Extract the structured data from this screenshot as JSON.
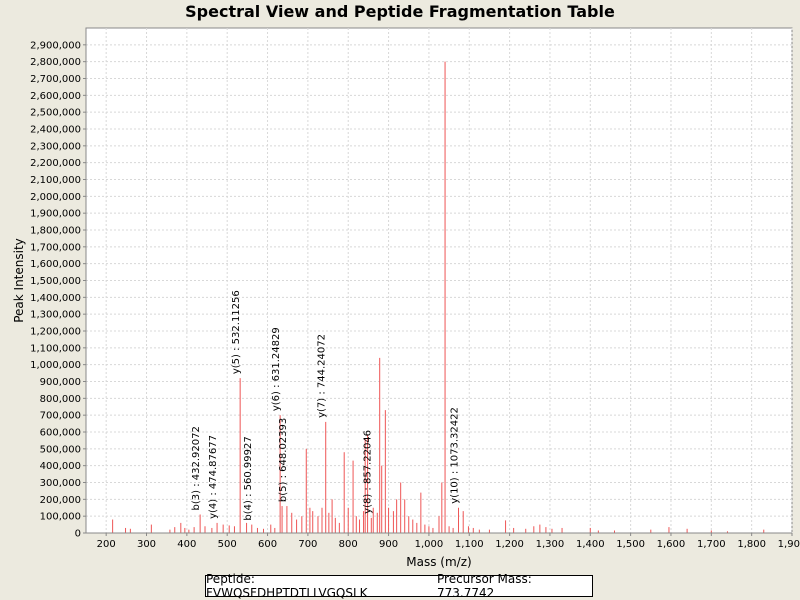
{
  "chart_data": {
    "type": "bar",
    "title": "Spectral View and Peptide Fragmentation Table",
    "xlabel": "Mass (m/z)",
    "ylabel": "Peak Intensity",
    "xlim": [
      150,
      1900
    ],
    "ylim": [
      0,
      3000000
    ],
    "x_ticks": [
      200,
      300,
      400,
      500,
      600,
      700,
      800,
      900,
      1000,
      1100,
      1200,
      1300,
      1400,
      1500,
      1600,
      1700,
      1800,
      1900
    ],
    "x_tick_labels": [
      "200",
      "300",
      "400",
      "500",
      "600",
      "700",
      "800",
      "900",
      "1,000",
      "1,100",
      "1,200",
      "1,300",
      "1,400",
      "1,500",
      "1,600",
      "1,700",
      "1,800",
      "1,900"
    ],
    "y_ticks": [
      0,
      100000,
      200000,
      300000,
      400000,
      500000,
      600000,
      700000,
      800000,
      900000,
      1000000,
      1100000,
      1200000,
      1300000,
      1400000,
      1500000,
      1600000,
      1700000,
      1800000,
      1900000,
      2000000,
      2100000,
      2200000,
      2300000,
      2400000,
      2500000,
      2600000,
      2700000,
      2800000,
      2900000
    ],
    "y_tick_labels": [
      "0",
      "100,000",
      "200,000",
      "300,000",
      "400,000",
      "500,000",
      "600,000",
      "700,000",
      "800,000",
      "900,000",
      "1,000,000",
      "1,100,000",
      "1,200,000",
      "1,300,000",
      "1,400,000",
      "1,500,000",
      "1,600,000",
      "1,700,000",
      "1,800,000",
      "1,900,000",
      "2,000,000",
      "2,100,000",
      "2,200,000",
      "2,300,000",
      "2,400,000",
      "2,500,000",
      "2,600,000",
      "2,700,000",
      "2,800,000",
      "2,900,000"
    ],
    "grid": true,
    "bar_color": "#ee5555",
    "peaks": [
      [
        216,
        80000
      ],
      [
        248,
        30000
      ],
      [
        260,
        25000
      ],
      [
        312,
        50000
      ],
      [
        358,
        20000
      ],
      [
        370,
        35000
      ],
      [
        385,
        60000
      ],
      [
        395,
        30000
      ],
      [
        405,
        20000
      ],
      [
        418,
        35000
      ],
      [
        432.9,
        110000
      ],
      [
        445,
        40000
      ],
      [
        462,
        30000
      ],
      [
        474.9,
        60000
      ],
      [
        490,
        50000
      ],
      [
        505,
        45000
      ],
      [
        518,
        40000
      ],
      [
        532.1,
        920000
      ],
      [
        548,
        60000
      ],
      [
        560.9,
        50000
      ],
      [
        575,
        30000
      ],
      [
        590,
        25000
      ],
      [
        608,
        50000
      ],
      [
        618,
        30000
      ],
      [
        631.2,
        700000
      ],
      [
        636,
        160000
      ],
      [
        648.0,
        160000
      ],
      [
        660,
        120000
      ],
      [
        672,
        80000
      ],
      [
        685,
        100000
      ],
      [
        696,
        500000
      ],
      [
        705,
        150000
      ],
      [
        712,
        130000
      ],
      [
        725,
        100000
      ],
      [
        735,
        150000
      ],
      [
        744.2,
        660000
      ],
      [
        752,
        120000
      ],
      [
        760,
        200000
      ],
      [
        768,
        90000
      ],
      [
        778,
        60000
      ],
      [
        790,
        480000
      ],
      [
        800,
        150000
      ],
      [
        812,
        430000
      ],
      [
        820,
        100000
      ],
      [
        828,
        80000
      ],
      [
        838,
        130000
      ],
      [
        842,
        560000
      ],
      [
        848,
        580000
      ],
      [
        857.2,
        90000
      ],
      [
        862,
        150000
      ],
      [
        872,
        120000
      ],
      [
        878,
        1040000
      ],
      [
        883,
        400000
      ],
      [
        892,
        730000
      ],
      [
        900,
        150000
      ],
      [
        912,
        130000
      ],
      [
        920,
        200000
      ],
      [
        930,
        300000
      ],
      [
        940,
        200000
      ],
      [
        950,
        100000
      ],
      [
        960,
        80000
      ],
      [
        970,
        60000
      ],
      [
        980,
        240000
      ],
      [
        990,
        50000
      ],
      [
        1000,
        40000
      ],
      [
        1010,
        30000
      ],
      [
        1025,
        100000
      ],
      [
        1032,
        300000
      ],
      [
        1040,
        2800000
      ],
      [
        1050,
        40000
      ],
      [
        1060,
        30000
      ],
      [
        1073.3,
        150000
      ],
      [
        1085,
        130000
      ],
      [
        1098,
        40000
      ],
      [
        1110,
        30000
      ],
      [
        1125,
        20000
      ],
      [
        1150,
        20000
      ],
      [
        1190,
        75000
      ],
      [
        1210,
        30000
      ],
      [
        1240,
        25000
      ],
      [
        1260,
        40000
      ],
      [
        1275,
        50000
      ],
      [
        1290,
        35000
      ],
      [
        1305,
        25000
      ],
      [
        1330,
        30000
      ],
      [
        1400,
        30000
      ],
      [
        1420,
        15000
      ],
      [
        1460,
        15000
      ],
      [
        1550,
        20000
      ],
      [
        1595,
        35000
      ],
      [
        1640,
        25000
      ],
      [
        1700,
        15000
      ],
      [
        1740,
        10000
      ],
      [
        1830,
        20000
      ]
    ],
    "annotations": [
      {
        "label": "b(3) : 432.92072",
        "x": 432.9,
        "y": 110000
      },
      {
        "label": "y(4) : 474.87677",
        "x": 474.9,
        "y": 60000
      },
      {
        "label": "y(5) : 532.11256",
        "x": 532.1,
        "y": 920000
      },
      {
        "label": "b(4) : 560.99927",
        "x": 560.9,
        "y": 50000
      },
      {
        "label": "y(6) : 631.24829",
        "x": 631.2,
        "y": 700000
      },
      {
        "label": "b(5) : 648.02393",
        "x": 648.0,
        "y": 160000
      },
      {
        "label": "y(7) : 744.24072",
        "x": 744.2,
        "y": 660000
      },
      {
        "label": "y(8) : 857.22046",
        "x": 857.2,
        "y": 90000
      },
      {
        "label": "y(10) : 1073.32422",
        "x": 1073.3,
        "y": 150000
      }
    ]
  },
  "legend": {
    "peptide_text": "Peptide: FVWQSFDHPTDTLLVGQSLK",
    "precursor_text": "Precursor Mass: 773.7742"
  }
}
